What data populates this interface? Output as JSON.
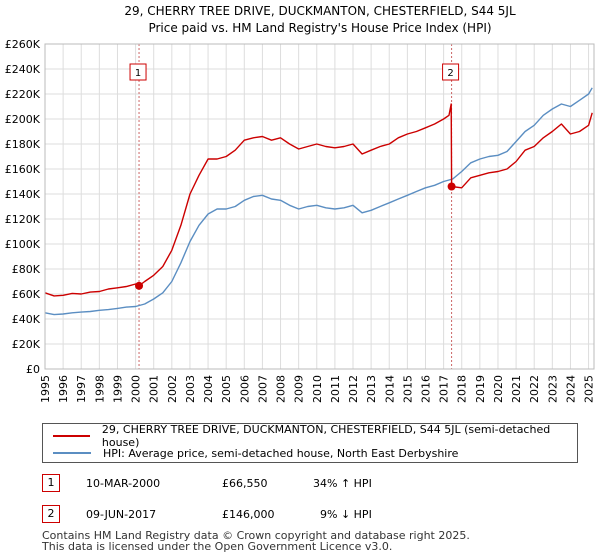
{
  "chart_data": {
    "type": "line",
    "title": "29, CHERRY TREE DRIVE, DUCKMANTON, CHESTERFIELD, S44 5JL",
    "subtitle": "Price paid vs. HM Land Registry's House Price Index (HPI)",
    "xlim": [
      1995,
      2025.3
    ],
    "ylim": [
      0,
      260000
    ],
    "y_ticks": [
      0,
      20000,
      40000,
      60000,
      80000,
      100000,
      120000,
      140000,
      160000,
      180000,
      200000,
      220000,
      240000,
      260000
    ],
    "y_tick_labels": [
      "£0",
      "£20K",
      "£40K",
      "£60K",
      "£80K",
      "£100K",
      "£120K",
      "£140K",
      "£160K",
      "£180K",
      "£200K",
      "£220K",
      "£240K",
      "£260K"
    ],
    "x_ticks": [
      1995,
      1996,
      1997,
      1998,
      1999,
      2000,
      2001,
      2002,
      2003,
      2004,
      2005,
      2006,
      2007,
      2008,
      2009,
      2010,
      2011,
      2012,
      2013,
      2014,
      2015,
      2016,
      2017,
      2018,
      2019,
      2020,
      2021,
      2022,
      2023,
      2024,
      2025
    ],
    "x_tick_labels": [
      "1995",
      "1996",
      "1997",
      "1998",
      "1999",
      "2000",
      "2001",
      "2002",
      "2003",
      "2004",
      "2005",
      "2006",
      "2007",
      "2008",
      "2009",
      "2010",
      "2011",
      "2012",
      "2013",
      "2014",
      "2015",
      "2016",
      "2017",
      "2018",
      "2019",
      "2020",
      "2021",
      "2022",
      "2023",
      "2024",
      "2025"
    ],
    "grid": true,
    "series": [
      {
        "name": "29, CHERRY TREE DRIVE, DUCKMANTON, CHESTERFIELD, S44 5JL (semi-detached house)",
        "color": "#cc0000",
        "x": [
          1995.0,
          1995.5,
          1996.0,
          1996.5,
          1997.0,
          1997.5,
          1998.0,
          1998.5,
          1999.0,
          1999.5,
          2000.0,
          2000.19,
          2000.5,
          2001.0,
          2001.5,
          2002.0,
          2002.5,
          2003.0,
          2003.5,
          2004.0,
          2004.5,
          2005.0,
          2005.5,
          2006.0,
          2006.5,
          2007.0,
          2007.5,
          2008.0,
          2008.5,
          2009.0,
          2009.5,
          2010.0,
          2010.5,
          2011.0,
          2011.5,
          2012.0,
          2012.5,
          2013.0,
          2013.5,
          2014.0,
          2014.5,
          2015.0,
          2015.5,
          2016.0,
          2016.5,
          2017.0,
          2017.3,
          2017.42,
          2017.44,
          2018.0,
          2018.5,
          2019.0,
          2019.5,
          2020.0,
          2020.5,
          2021.0,
          2021.5,
          2022.0,
          2022.5,
          2023.0,
          2023.5,
          2024.0,
          2024.5,
          2025.0,
          2025.2
        ],
        "y": [
          61000,
          58500,
          59000,
          60500,
          60000,
          61500,
          62000,
          64000,
          65000,
          66000,
          68000,
          66550,
          70000,
          75000,
          82000,
          95000,
          115000,
          140000,
          155000,
          168000,
          168000,
          170000,
          175000,
          183000,
          185000,
          186000,
          183000,
          185000,
          180000,
          176000,
          178000,
          180000,
          178000,
          177000,
          178000,
          180000,
          172000,
          175000,
          178000,
          180000,
          185000,
          188000,
          190000,
          193000,
          196000,
          200000,
          203000,
          212000,
          146000,
          145000,
          153000,
          155000,
          157000,
          158000,
          160000,
          166000,
          175000,
          178000,
          185000,
          190000,
          196000,
          188000,
          190000,
          195000,
          205000
        ]
      },
      {
        "name": "HPI: Average price, semi-detached house, North East Derbyshire",
        "color": "#5b8ec2",
        "x": [
          1995.0,
          1995.5,
          1996.0,
          1996.5,
          1997.0,
          1997.5,
          1998.0,
          1998.5,
          1999.0,
          1999.5,
          2000.0,
          2000.5,
          2001.0,
          2001.5,
          2002.0,
          2002.5,
          2003.0,
          2003.5,
          2004.0,
          2004.5,
          2005.0,
          2005.5,
          2006.0,
          2006.5,
          2007.0,
          2007.5,
          2008.0,
          2008.5,
          2009.0,
          2009.5,
          2010.0,
          2010.5,
          2011.0,
          2011.5,
          2012.0,
          2012.5,
          2013.0,
          2013.5,
          2014.0,
          2014.5,
          2015.0,
          2015.5,
          2016.0,
          2016.5,
          2017.0,
          2017.5,
          2018.0,
          2018.5,
          2019.0,
          2019.5,
          2020.0,
          2020.5,
          2021.0,
          2021.5,
          2022.0,
          2022.5,
          2023.0,
          2023.5,
          2024.0,
          2024.5,
          2025.0,
          2025.2
        ],
        "y": [
          45000,
          43500,
          44000,
          45000,
          45500,
          46000,
          47000,
          47500,
          48500,
          49500,
          50000,
          52000,
          56000,
          61000,
          70000,
          85000,
          102000,
          115000,
          124000,
          128000,
          128000,
          130000,
          135000,
          138000,
          139000,
          136000,
          135000,
          131000,
          128000,
          130000,
          131000,
          129000,
          128000,
          129000,
          131000,
          125000,
          127000,
          130000,
          133000,
          136000,
          139000,
          142000,
          145000,
          147000,
          150000,
          152000,
          158000,
          165000,
          168000,
          170000,
          171000,
          174000,
          182000,
          190000,
          195000,
          203000,
          208000,
          212000,
          210000,
          215000,
          220000,
          225000
        ]
      }
    ],
    "annotations": [
      {
        "label": "1",
        "x": 2000.19,
        "y": 66550
      },
      {
        "label": "2",
        "x": 2017.44,
        "y": 146000
      }
    ]
  },
  "sales": [
    {
      "num": "1",
      "date": "10-MAR-2000",
      "price": "£66,550",
      "hpi": "34% ↑ HPI"
    },
    {
      "num": "2",
      "date": "09-JUN-2017",
      "price": "£146,000",
      "hpi": "9% ↓ HPI"
    }
  ],
  "footer": {
    "line1": "Contains HM Land Registry data © Crown copyright and database right 2025.",
    "line2": "This data is licensed under the Open Government Licence v3.0."
  }
}
